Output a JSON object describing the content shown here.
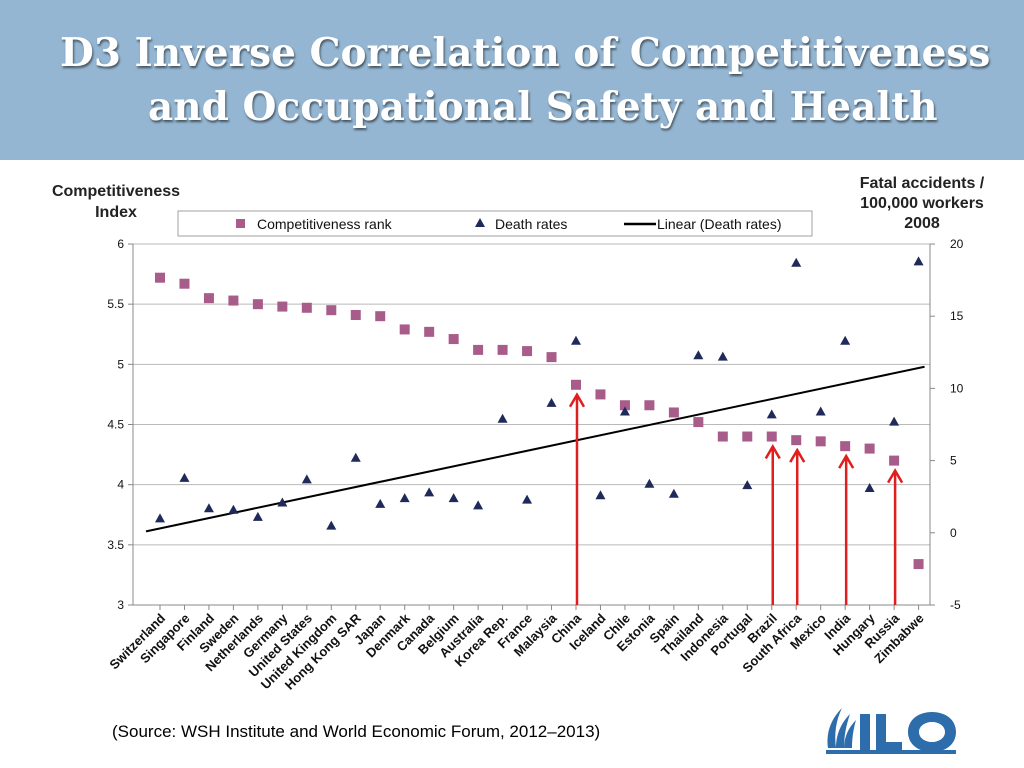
{
  "header": {
    "title_line1": "D3   Inverse Correlation of Competitiveness",
    "title_line2": "and Occupational Safety and Health",
    "background_color": "#94b6d2"
  },
  "source": "(Source: WSH Institute and World Economic Forum, 2012–2013)",
  "logo": {
    "icon": "ilo-logo"
  },
  "chart_data": {
    "type": "scatter",
    "title": "",
    "y_left_label_lines": [
      "Competitiveness",
      "Index"
    ],
    "y_right_label_lines": [
      "Fatal accidents /",
      "100,000 workers",
      "2008"
    ],
    "y_left_range": [
      3,
      6
    ],
    "y_left_ticks": [
      "3",
      "3.5",
      "4",
      "4.5",
      "5",
      "5.5",
      "6"
    ],
    "y_right_range": [
      -5,
      20
    ],
    "y_right_ticks": [
      "-5",
      "0",
      "5",
      "10",
      "15",
      "20"
    ],
    "grid": true,
    "legend_position": "top",
    "categories": [
      "Switzerland",
      "Singapore",
      "Finland",
      "Sweden",
      "Netherlands",
      "Germany",
      "United States",
      "United Kingdom",
      "Hong Kong SAR",
      "Japan",
      "Denmark",
      "Canada",
      "Belgium",
      "Australia",
      "Korea Rep.",
      "France",
      "Malaysia",
      "China",
      "Iceland",
      "Chile",
      "Estonia",
      "Spain",
      "Thailand",
      "Indonesia",
      "Portugal",
      "Brazil",
      "South Africa",
      "Mexico",
      "India",
      "Hungary",
      "Russia",
      "Zimbabwe"
    ],
    "series": [
      {
        "name": "Competitiveness rank",
        "marker": "square",
        "axis": "left",
        "color": "#a85c8a",
        "values": [
          5.72,
          5.67,
          5.55,
          5.53,
          5.5,
          5.48,
          5.47,
          5.45,
          5.41,
          5.4,
          5.29,
          5.27,
          5.21,
          5.12,
          5.12,
          5.11,
          5.06,
          4.83,
          4.75,
          4.66,
          4.66,
          4.6,
          4.52,
          4.4,
          4.4,
          4.4,
          4.37,
          4.36,
          4.32,
          4.3,
          4.2,
          3.34
        ]
      },
      {
        "name": "Death rates",
        "marker": "triangle",
        "axis": "right",
        "color": "#1f2a5a",
        "values": [
          1.0,
          3.8,
          1.7,
          1.6,
          1.1,
          2.1,
          3.7,
          0.5,
          5.2,
          2.0,
          2.4,
          2.8,
          2.4,
          1.9,
          7.9,
          2.3,
          9.0,
          13.3,
          2.6,
          8.4,
          3.4,
          2.7,
          12.3,
          12.2,
          3.3,
          8.2,
          18.7,
          8.4,
          13.3,
          3.1,
          7.7,
          18.8
        ]
      }
    ],
    "trendline": {
      "name": "Linear (Death rates)",
      "axis": "right",
      "color": "#000000",
      "start": 0.1,
      "end": 11.5
    },
    "annotations": {
      "arrow_color": "#e01e1e",
      "arrows_at": [
        "China",
        "Brazil",
        "South Africa",
        "India",
        "Russia"
      ]
    }
  }
}
